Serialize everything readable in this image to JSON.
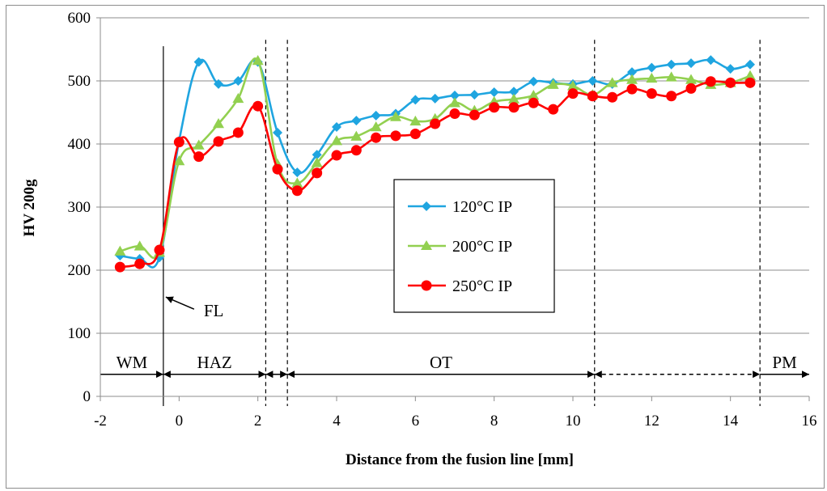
{
  "chart_data": {
    "type": "line",
    "xlabel": "Distance from the fusion line [mm]",
    "ylabel": "HV 200g",
    "xlim": [
      -2,
      16
    ],
    "ylim": [
      0,
      600
    ],
    "xticks": [
      -2,
      0,
      2,
      4,
      6,
      8,
      10,
      12,
      14,
      16
    ],
    "yticks": [
      0,
      100,
      200,
      300,
      400,
      500,
      600
    ],
    "grid": "horizontal",
    "legend_position": "center-right",
    "series": [
      {
        "name": "120°C IP",
        "color": "#1fa5e0",
        "marker": "diamond",
        "x": [
          -1.5,
          -1.0,
          -0.5,
          0.0,
          0.5,
          1.0,
          1.5,
          2.0,
          2.5,
          3.0,
          3.5,
          4.0,
          4.5,
          5.0,
          5.5,
          6.0,
          6.5,
          7.0,
          7.5,
          8.0,
          8.5,
          9.0,
          9.5,
          10.0,
          10.5,
          11.0,
          11.5,
          12.0,
          12.5,
          13.0,
          13.5,
          14.0,
          14.5
        ],
        "y": [
          223,
          218,
          220,
          405,
          530,
          495,
          500,
          530,
          418,
          355,
          383,
          427,
          437,
          445,
          448,
          470,
          472,
          477,
          478,
          482,
          483,
          499,
          497,
          495,
          500,
          495,
          514,
          521,
          526,
          528,
          533,
          519,
          526
        ]
      },
      {
        "name": "200°C IP",
        "color": "#92d050",
        "marker": "triangle",
        "x": [
          -1.5,
          -1.0,
          -0.5,
          0.0,
          0.5,
          1.0,
          1.5,
          2.0,
          2.5,
          3.0,
          3.5,
          4.0,
          4.5,
          5.0,
          5.5,
          6.0,
          6.5,
          7.0,
          7.5,
          8.0,
          8.5,
          9.0,
          9.5,
          10.0,
          10.5,
          11.0,
          11.5,
          12.0,
          12.5,
          13.0,
          13.5,
          14.0,
          14.5
        ],
        "y": [
          230,
          238,
          228,
          373,
          398,
          432,
          472,
          532,
          368,
          338,
          370,
          405,
          412,
          427,
          443,
          436,
          440,
          465,
          453,
          467,
          471,
          477,
          494,
          492,
          478,
          497,
          502,
          504,
          506,
          502,
          494,
          497,
          508
        ]
      },
      {
        "name": "250°C IP",
        "color": "#ff0000",
        "marker": "circle",
        "x": [
          -1.5,
          -1.0,
          -0.5,
          0.0,
          0.5,
          1.0,
          1.5,
          2.0,
          2.5,
          3.0,
          3.5,
          4.0,
          4.5,
          5.0,
          5.5,
          6.0,
          6.5,
          7.0,
          7.5,
          8.0,
          8.5,
          9.0,
          9.5,
          10.0,
          10.5,
          11.0,
          11.5,
          12.0,
          12.5,
          13.0,
          13.5,
          14.0,
          14.5
        ],
        "y": [
          205,
          210,
          232,
          403,
          380,
          404,
          418,
          460,
          360,
          326,
          354,
          382,
          390,
          410,
          413,
          416,
          432,
          448,
          446,
          458,
          458,
          465,
          455,
          480,
          476,
          474,
          487,
          480,
          476,
          488,
          499,
          497,
          497
        ]
      }
    ],
    "vertical_lines": [
      {
        "x": -0.4,
        "style": "solid"
      },
      {
        "x": 2.2,
        "style": "dashed"
      },
      {
        "x": 2.75,
        "style": "dashed"
      },
      {
        "x": 10.55,
        "style": "dashed"
      },
      {
        "x": 14.75,
        "style": "dashed"
      }
    ],
    "zones": [
      {
        "label": "WM",
        "from": -2.0,
        "to": -0.4,
        "line": "solid",
        "arrows": "end"
      },
      {
        "label": "HAZ",
        "from": -0.4,
        "to": 2.2,
        "line": "solid",
        "arrows": "both"
      },
      {
        "label": "",
        "from": 2.2,
        "to": 2.75,
        "line": "solid",
        "arrows": "both"
      },
      {
        "label": "OT",
        "from": 2.75,
        "to": 10.55,
        "line": "solid",
        "arrows": "both"
      },
      {
        "label": "",
        "from": 10.55,
        "to": 14.75,
        "line": "dashed",
        "arrows": "both"
      },
      {
        "label": "PM",
        "from": 14.75,
        "to": 16.0,
        "line": "solid",
        "arrows": "end"
      }
    ],
    "annotations": [
      {
        "text": "FL",
        "points_to": {
          "x": -0.4,
          "y": 160
        }
      }
    ]
  }
}
